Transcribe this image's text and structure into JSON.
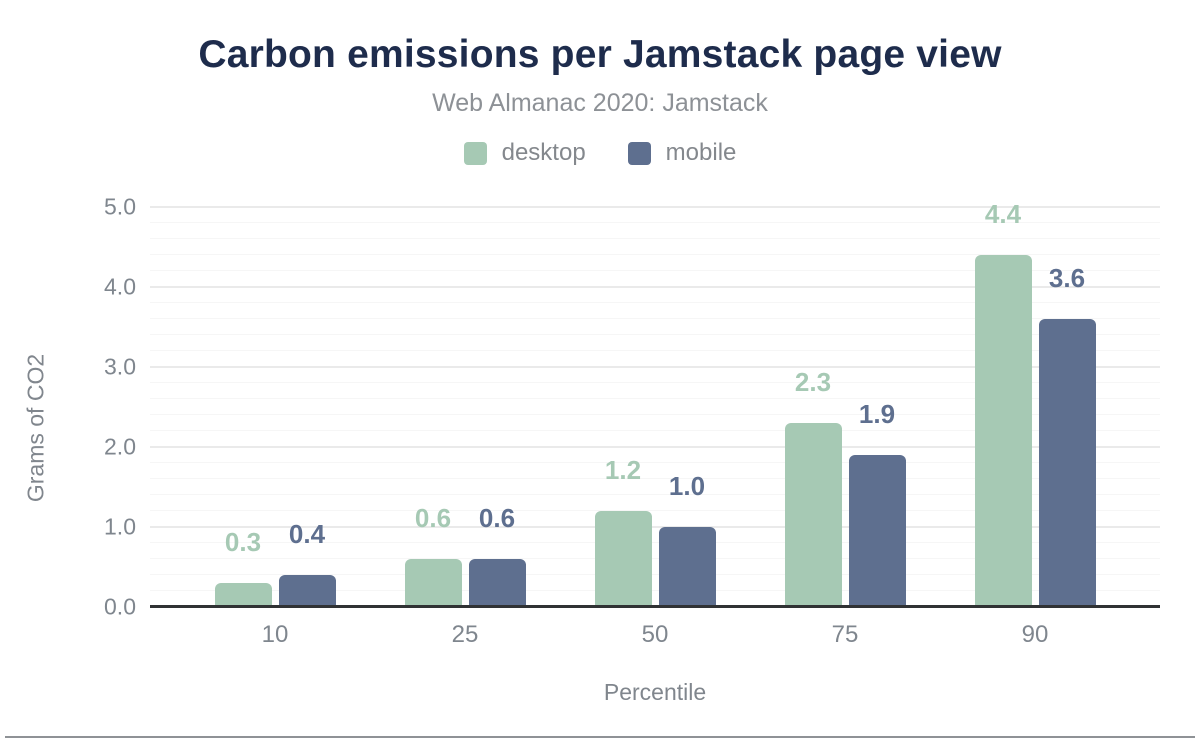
{
  "chart_data": {
    "type": "bar",
    "title": "Carbon emissions per Jamstack page view",
    "subtitle": "Web Almanac 2020: Jamstack",
    "xlabel": "Percentile",
    "ylabel": "Grams of CO2",
    "categories": [
      "10",
      "25",
      "50",
      "75",
      "90"
    ],
    "series": [
      {
        "name": "desktop",
        "color": "#a6c9b4",
        "values": [
          0.3,
          0.6,
          1.2,
          2.3,
          4.4
        ],
        "labels": [
          "0.3",
          "0.6",
          "1.2",
          "2.3",
          "4.4"
        ]
      },
      {
        "name": "mobile",
        "color": "#5e6f8f",
        "values": [
          0.4,
          0.6,
          1.0,
          1.9,
          3.6
        ],
        "labels": [
          "0.4",
          "0.6",
          "1.0",
          "1.9",
          "3.6"
        ]
      }
    ],
    "ylim": [
      0,
      5
    ],
    "ytick_step": 1,
    "ytick_minor_step": 0.2,
    "ytick_labels": [
      "0.0",
      "1.0",
      "2.0",
      "3.0",
      "4.0",
      "5.0"
    ],
    "legend_position": "top",
    "grid": true
  },
  "colors": {
    "title": "#1e2c4c",
    "subtitle": "#8d9196",
    "axis_text": "#7f868e",
    "axis_line": "#303234",
    "gridline_major": "#eaeaea",
    "gridline_minor": "#f6f6f6",
    "footer_divider": "#8f9296",
    "background": "#ffffff"
  }
}
